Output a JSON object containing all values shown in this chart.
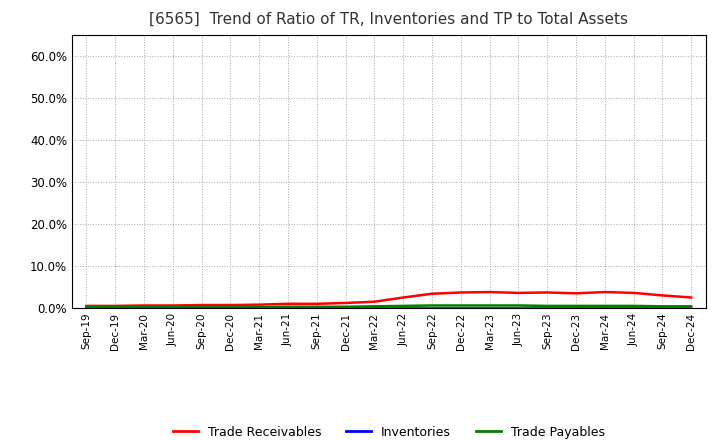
{
  "title": "[6565]  Trend of Ratio of TR, Inventories and TP to Total Assets",
  "title_fontsize": 11,
  "background_color": "#ffffff",
  "plot_bg_color": "#ffffff",
  "grid_color": "#aaaaaa",
  "x_labels": [
    "Sep-19",
    "Dec-19",
    "Mar-20",
    "Jun-20",
    "Sep-20",
    "Dec-20",
    "Mar-21",
    "Jun-21",
    "Sep-21",
    "Dec-21",
    "Mar-22",
    "Jun-22",
    "Sep-22",
    "Dec-22",
    "Mar-23",
    "Jun-23",
    "Sep-23",
    "Dec-23",
    "Mar-24",
    "Jun-24",
    "Sep-24",
    "Dec-24"
  ],
  "trade_receivables": [
    0.005,
    0.005,
    0.006,
    0.006,
    0.007,
    0.007,
    0.008,
    0.01,
    0.01,
    0.012,
    0.015,
    0.025,
    0.034,
    0.037,
    0.038,
    0.036,
    0.037,
    0.035,
    0.038,
    0.036,
    0.03,
    0.025
  ],
  "inventories": [
    0.001,
    0.001,
    0.001,
    0.001,
    0.001,
    0.001,
    0.001,
    0.001,
    0.001,
    0.001,
    0.001,
    0.001,
    0.001,
    0.001,
    0.001,
    0.001,
    0.001,
    0.001,
    0.001,
    0.001,
    0.001,
    0.001
  ],
  "trade_payables": [
    0.002,
    0.002,
    0.002,
    0.002,
    0.002,
    0.002,
    0.002,
    0.003,
    0.003,
    0.003,
    0.004,
    0.005,
    0.006,
    0.006,
    0.006,
    0.006,
    0.005,
    0.005,
    0.005,
    0.005,
    0.004,
    0.004
  ],
  "ylim": [
    0.0,
    0.65
  ],
  "yticks": [
    0.0,
    0.1,
    0.2,
    0.3,
    0.4,
    0.5,
    0.6
  ],
  "legend_labels": [
    "Trade Receivables",
    "Inventories",
    "Trade Payables"
  ],
  "line_colors": [
    "#ff0000",
    "#0000ff",
    "#008000"
  ],
  "line_width": 1.8
}
